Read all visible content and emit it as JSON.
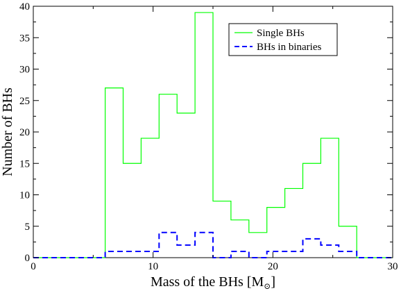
{
  "chart_data": {
    "type": "step",
    "xlabel": "Mass of the BHs [M",
    "xlabel_sub": "⊙",
    "xlabel_close": "]",
    "ylabel": "Number of BHs",
    "xlim": [
      0,
      30
    ],
    "ylim": [
      0,
      40
    ],
    "xticks": [
      0,
      10,
      20,
      30
    ],
    "yticks": [
      0,
      5,
      10,
      15,
      20,
      25,
      30,
      35,
      40
    ],
    "grid": false,
    "legend_position": "top-right",
    "bin_edges": [
      0,
      1.5,
      3,
      4.5,
      6,
      7.5,
      9,
      10.5,
      12,
      13.5,
      15,
      16.5,
      18,
      19.5,
      21,
      22.5,
      24,
      25.5,
      27,
      28.5,
      30
    ],
    "series": [
      {
        "name": "Single BHs",
        "color": "#00ff00",
        "dash": "solid",
        "values": [
          0,
          0,
          0,
          0,
          27,
          15,
          19,
          26,
          23,
          39,
          9,
          6,
          4,
          8,
          11,
          15,
          19,
          5,
          0,
          0
        ]
      },
      {
        "name": "BHs in binaries",
        "color": "#0000ff",
        "dash": "dashed",
        "values": [
          0,
          0,
          0,
          0,
          1,
          1,
          1,
          4,
          2,
          4,
          0,
          1,
          0,
          1,
          1,
          3,
          2,
          1,
          0,
          0
        ]
      }
    ]
  }
}
